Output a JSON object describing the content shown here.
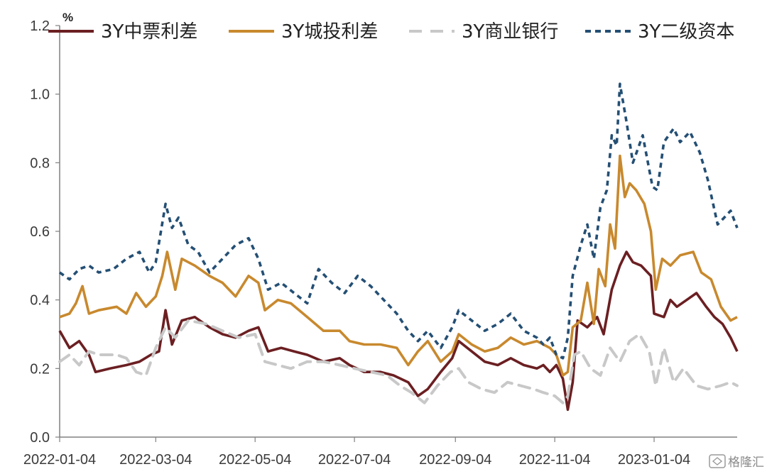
{
  "chart_data": {
    "type": "line",
    "unit": "%",
    "ylim": [
      0.0,
      1.2
    ],
    "yticks": [
      "0.0",
      "0.2",
      "0.4",
      "0.6",
      "0.8",
      "1.0",
      "1.2"
    ],
    "x_tick_labels": [
      "2022-01-04",
      "2022-03-04",
      "2022-05-04",
      "2022-07-04",
      "2022-09-04",
      "2022-11-04",
      "2023-01-04"
    ],
    "x_domain": [
      "2022-01-04",
      "2023-02-24"
    ],
    "legend_position": "top",
    "series": [
      {
        "name": "3Y中票利差",
        "color": "#6b1f22",
        "dash": "solid",
        "points": [
          [
            "2022-01-04",
            0.31
          ],
          [
            "2022-01-10",
            0.26
          ],
          [
            "2022-01-16",
            0.28
          ],
          [
            "2022-01-22",
            0.24
          ],
          [
            "2022-01-26",
            0.19
          ],
          [
            "2022-02-04",
            0.2
          ],
          [
            "2022-02-14",
            0.21
          ],
          [
            "2022-02-22",
            0.22
          ],
          [
            "2022-03-01",
            0.24
          ],
          [
            "2022-03-06",
            0.25
          ],
          [
            "2022-03-10",
            0.37
          ],
          [
            "2022-03-14",
            0.27
          ],
          [
            "2022-03-20",
            0.34
          ],
          [
            "2022-03-28",
            0.35
          ],
          [
            "2022-04-06",
            0.32
          ],
          [
            "2022-04-14",
            0.3
          ],
          [
            "2022-04-22",
            0.29
          ],
          [
            "2022-04-30",
            0.31
          ],
          [
            "2022-05-06",
            0.32
          ],
          [
            "2022-05-12",
            0.25
          ],
          [
            "2022-05-20",
            0.26
          ],
          [
            "2022-05-28",
            0.25
          ],
          [
            "2022-06-05",
            0.24
          ],
          [
            "2022-06-15",
            0.22
          ],
          [
            "2022-06-25",
            0.23
          ],
          [
            "2022-07-01",
            0.21
          ],
          [
            "2022-07-10",
            0.19
          ],
          [
            "2022-07-20",
            0.19
          ],
          [
            "2022-07-28",
            0.18
          ],
          [
            "2022-08-06",
            0.16
          ],
          [
            "2022-08-12",
            0.12
          ],
          [
            "2022-08-18",
            0.14
          ],
          [
            "2022-08-26",
            0.19
          ],
          [
            "2022-09-02",
            0.23
          ],
          [
            "2022-09-06",
            0.28
          ],
          [
            "2022-09-14",
            0.25
          ],
          [
            "2022-09-22",
            0.22
          ],
          [
            "2022-09-30",
            0.21
          ],
          [
            "2022-10-08",
            0.23
          ],
          [
            "2022-10-16",
            0.21
          ],
          [
            "2022-10-24",
            0.2
          ],
          [
            "2022-10-28",
            0.21
          ],
          [
            "2022-11-01",
            0.19
          ],
          [
            "2022-11-05",
            0.21
          ],
          [
            "2022-11-09",
            0.17
          ],
          [
            "2022-11-12",
            0.08
          ],
          [
            "2022-11-15",
            0.16
          ],
          [
            "2022-11-18",
            0.34
          ],
          [
            "2022-11-24",
            0.32
          ],
          [
            "2022-11-30",
            0.35
          ],
          [
            "2022-12-04",
            0.3
          ],
          [
            "2022-12-09",
            0.43
          ],
          [
            "2022-12-14",
            0.5
          ],
          [
            "2022-12-18",
            0.54
          ],
          [
            "2022-12-22",
            0.51
          ],
          [
            "2022-12-27",
            0.5
          ],
          [
            "2023-01-02",
            0.47
          ],
          [
            "2023-01-04",
            0.36
          ],
          [
            "2023-01-10",
            0.35
          ],
          [
            "2023-01-14",
            0.4
          ],
          [
            "2023-01-18",
            0.38
          ],
          [
            "2023-01-24",
            0.4
          ],
          [
            "2023-01-30",
            0.42
          ],
          [
            "2023-02-05",
            0.38
          ],
          [
            "2023-02-10",
            0.35
          ],
          [
            "2023-02-15",
            0.33
          ],
          [
            "2023-02-20",
            0.29
          ],
          [
            "2023-02-24",
            0.25
          ]
        ]
      },
      {
        "name": "3Y城投利差",
        "color": "#c8892e",
        "dash": "solid",
        "points": [
          [
            "2022-01-04",
            0.35
          ],
          [
            "2022-01-10",
            0.36
          ],
          [
            "2022-01-14",
            0.39
          ],
          [
            "2022-01-18",
            0.44
          ],
          [
            "2022-01-22",
            0.36
          ],
          [
            "2022-01-28",
            0.37
          ],
          [
            "2022-02-08",
            0.38
          ],
          [
            "2022-02-14",
            0.36
          ],
          [
            "2022-02-20",
            0.42
          ],
          [
            "2022-02-26",
            0.38
          ],
          [
            "2022-03-04",
            0.41
          ],
          [
            "2022-03-08",
            0.47
          ],
          [
            "2022-03-11",
            0.54
          ],
          [
            "2022-03-16",
            0.43
          ],
          [
            "2022-03-20",
            0.52
          ],
          [
            "2022-03-28",
            0.5
          ],
          [
            "2022-04-06",
            0.47
          ],
          [
            "2022-04-14",
            0.45
          ],
          [
            "2022-04-22",
            0.41
          ],
          [
            "2022-04-30",
            0.47
          ],
          [
            "2022-05-06",
            0.45
          ],
          [
            "2022-05-10",
            0.37
          ],
          [
            "2022-05-18",
            0.4
          ],
          [
            "2022-05-26",
            0.39
          ],
          [
            "2022-06-05",
            0.35
          ],
          [
            "2022-06-15",
            0.31
          ],
          [
            "2022-06-25",
            0.31
          ],
          [
            "2022-07-01",
            0.28
          ],
          [
            "2022-07-10",
            0.27
          ],
          [
            "2022-07-20",
            0.27
          ],
          [
            "2022-07-30",
            0.26
          ],
          [
            "2022-08-06",
            0.21
          ],
          [
            "2022-08-12",
            0.25
          ],
          [
            "2022-08-18",
            0.28
          ],
          [
            "2022-08-26",
            0.22
          ],
          [
            "2022-09-02",
            0.25
          ],
          [
            "2022-09-06",
            0.3
          ],
          [
            "2022-09-14",
            0.27
          ],
          [
            "2022-09-22",
            0.25
          ],
          [
            "2022-09-30",
            0.26
          ],
          [
            "2022-10-08",
            0.29
          ],
          [
            "2022-10-16",
            0.27
          ],
          [
            "2022-10-24",
            0.28
          ],
          [
            "2022-10-28",
            0.27
          ],
          [
            "2022-11-01",
            0.26
          ],
          [
            "2022-11-05",
            0.24
          ],
          [
            "2022-11-09",
            0.18
          ],
          [
            "2022-11-12",
            0.19
          ],
          [
            "2022-11-15",
            0.32
          ],
          [
            "2022-11-20",
            0.34
          ],
          [
            "2022-11-24",
            0.45
          ],
          [
            "2022-11-28",
            0.33
          ],
          [
            "2022-12-01",
            0.49
          ],
          [
            "2022-12-05",
            0.44
          ],
          [
            "2022-12-08",
            0.62
          ],
          [
            "2022-12-11",
            0.55
          ],
          [
            "2022-12-14",
            0.82
          ],
          [
            "2022-12-17",
            0.7
          ],
          [
            "2022-12-20",
            0.74
          ],
          [
            "2022-12-24",
            0.72
          ],
          [
            "2022-12-29",
            0.68
          ],
          [
            "2023-01-02",
            0.6
          ],
          [
            "2023-01-05",
            0.43
          ],
          [
            "2023-01-09",
            0.52
          ],
          [
            "2023-01-14",
            0.5
          ],
          [
            "2023-01-20",
            0.53
          ],
          [
            "2023-01-28",
            0.54
          ],
          [
            "2023-02-02",
            0.48
          ],
          [
            "2023-02-08",
            0.46
          ],
          [
            "2023-02-14",
            0.38
          ],
          [
            "2023-02-20",
            0.34
          ],
          [
            "2023-02-24",
            0.35
          ]
        ]
      },
      {
        "name": "3Y商业银行",
        "color": "#c8c8c8",
        "dash": "long",
        "points": [
          [
            "2022-01-04",
            0.22
          ],
          [
            "2022-01-10",
            0.24
          ],
          [
            "2022-01-16",
            0.21
          ],
          [
            "2022-01-22",
            0.25
          ],
          [
            "2022-01-28",
            0.24
          ],
          [
            "2022-02-08",
            0.24
          ],
          [
            "2022-02-14",
            0.23
          ],
          [
            "2022-02-20",
            0.19
          ],
          [
            "2022-02-26",
            0.18
          ],
          [
            "2022-03-04",
            0.26
          ],
          [
            "2022-03-10",
            0.32
          ],
          [
            "2022-03-16",
            0.29
          ],
          [
            "2022-03-24",
            0.34
          ],
          [
            "2022-04-04",
            0.33
          ],
          [
            "2022-04-14",
            0.31
          ],
          [
            "2022-04-24",
            0.29
          ],
          [
            "2022-05-04",
            0.3
          ],
          [
            "2022-05-10",
            0.22
          ],
          [
            "2022-05-18",
            0.21
          ],
          [
            "2022-05-26",
            0.2
          ],
          [
            "2022-06-05",
            0.22
          ],
          [
            "2022-06-15",
            0.22
          ],
          [
            "2022-06-25",
            0.21
          ],
          [
            "2022-07-04",
            0.2
          ],
          [
            "2022-07-14",
            0.19
          ],
          [
            "2022-07-24",
            0.18
          ],
          [
            "2022-08-01",
            0.15
          ],
          [
            "2022-08-08",
            0.13
          ],
          [
            "2022-08-16",
            0.1
          ],
          [
            "2022-08-24",
            0.15
          ],
          [
            "2022-09-01",
            0.19
          ],
          [
            "2022-09-06",
            0.2
          ],
          [
            "2022-09-12",
            0.16
          ],
          [
            "2022-09-20",
            0.14
          ],
          [
            "2022-09-28",
            0.13
          ],
          [
            "2022-10-06",
            0.16
          ],
          [
            "2022-10-14",
            0.15
          ],
          [
            "2022-10-22",
            0.14
          ],
          [
            "2022-10-28",
            0.13
          ],
          [
            "2022-11-04",
            0.12
          ],
          [
            "2022-11-09",
            0.1
          ],
          [
            "2022-11-12",
            0.12
          ],
          [
            "2022-11-16",
            0.24
          ],
          [
            "2022-11-20",
            0.25
          ],
          [
            "2022-11-26",
            0.2
          ],
          [
            "2022-12-02",
            0.18
          ],
          [
            "2022-12-08",
            0.26
          ],
          [
            "2022-12-14",
            0.22
          ],
          [
            "2022-12-20",
            0.28
          ],
          [
            "2022-12-26",
            0.3
          ],
          [
            "2023-01-01",
            0.25
          ],
          [
            "2023-01-05",
            0.15
          ],
          [
            "2023-01-10",
            0.26
          ],
          [
            "2023-01-16",
            0.16
          ],
          [
            "2023-01-22",
            0.2
          ],
          [
            "2023-01-30",
            0.15
          ],
          [
            "2023-02-06",
            0.14
          ],
          [
            "2023-02-14",
            0.15
          ],
          [
            "2023-02-20",
            0.16
          ],
          [
            "2023-02-24",
            0.15
          ]
        ]
      },
      {
        "name": "3Y二级资本",
        "color": "#244f74",
        "dash": "short",
        "points": [
          [
            "2022-01-04",
            0.48
          ],
          [
            "2022-01-10",
            0.46
          ],
          [
            "2022-01-16",
            0.49
          ],
          [
            "2022-01-22",
            0.5
          ],
          [
            "2022-01-28",
            0.48
          ],
          [
            "2022-02-06",
            0.49
          ],
          [
            "2022-02-14",
            0.52
          ],
          [
            "2022-02-22",
            0.54
          ],
          [
            "2022-02-28",
            0.48
          ],
          [
            "2022-03-04",
            0.51
          ],
          [
            "2022-03-10",
            0.68
          ],
          [
            "2022-03-14",
            0.61
          ],
          [
            "2022-03-18",
            0.64
          ],
          [
            "2022-03-24",
            0.56
          ],
          [
            "2022-03-30",
            0.54
          ],
          [
            "2022-04-06",
            0.48
          ],
          [
            "2022-04-14",
            0.52
          ],
          [
            "2022-04-22",
            0.56
          ],
          [
            "2022-04-30",
            0.58
          ],
          [
            "2022-05-06",
            0.52
          ],
          [
            "2022-05-12",
            0.43
          ],
          [
            "2022-05-20",
            0.45
          ],
          [
            "2022-05-28",
            0.42
          ],
          [
            "2022-06-05",
            0.39
          ],
          [
            "2022-06-12",
            0.49
          ],
          [
            "2022-06-20",
            0.45
          ],
          [
            "2022-06-28",
            0.42
          ],
          [
            "2022-07-06",
            0.47
          ],
          [
            "2022-07-14",
            0.44
          ],
          [
            "2022-07-22",
            0.4
          ],
          [
            "2022-07-30",
            0.36
          ],
          [
            "2022-08-06",
            0.31
          ],
          [
            "2022-08-12",
            0.28
          ],
          [
            "2022-08-18",
            0.31
          ],
          [
            "2022-08-26",
            0.26
          ],
          [
            "2022-09-02",
            0.32
          ],
          [
            "2022-09-06",
            0.37
          ],
          [
            "2022-09-14",
            0.34
          ],
          [
            "2022-09-22",
            0.31
          ],
          [
            "2022-09-30",
            0.33
          ],
          [
            "2022-10-08",
            0.36
          ],
          [
            "2022-10-16",
            0.31
          ],
          [
            "2022-10-24",
            0.29
          ],
          [
            "2022-10-28",
            0.27
          ],
          [
            "2022-11-01",
            0.29
          ],
          [
            "2022-11-05",
            0.24
          ],
          [
            "2022-11-09",
            0.23
          ],
          [
            "2022-11-12",
            0.29
          ],
          [
            "2022-11-15",
            0.47
          ],
          [
            "2022-11-20",
            0.56
          ],
          [
            "2022-11-24",
            0.62
          ],
          [
            "2022-11-28",
            0.52
          ],
          [
            "2022-12-02",
            0.67
          ],
          [
            "2022-12-06",
            0.72
          ],
          [
            "2022-12-09",
            0.88
          ],
          [
            "2022-12-12",
            0.85
          ],
          [
            "2022-12-14",
            1.03
          ],
          [
            "2022-12-18",
            0.92
          ],
          [
            "2022-12-22",
            0.8
          ],
          [
            "2022-12-28",
            0.88
          ],
          [
            "2023-01-03",
            0.73
          ],
          [
            "2023-01-06",
            0.72
          ],
          [
            "2023-01-10",
            0.86
          ],
          [
            "2023-01-16",
            0.9
          ],
          [
            "2023-01-20",
            0.86
          ],
          [
            "2023-01-26",
            0.89
          ],
          [
            "2023-02-01",
            0.83
          ],
          [
            "2023-02-06",
            0.75
          ],
          [
            "2023-02-12",
            0.62
          ],
          [
            "2023-02-16",
            0.64
          ],
          [
            "2023-02-20",
            0.66
          ],
          [
            "2023-02-24",
            0.61
          ]
        ]
      }
    ]
  },
  "watermark": "格隆汇"
}
